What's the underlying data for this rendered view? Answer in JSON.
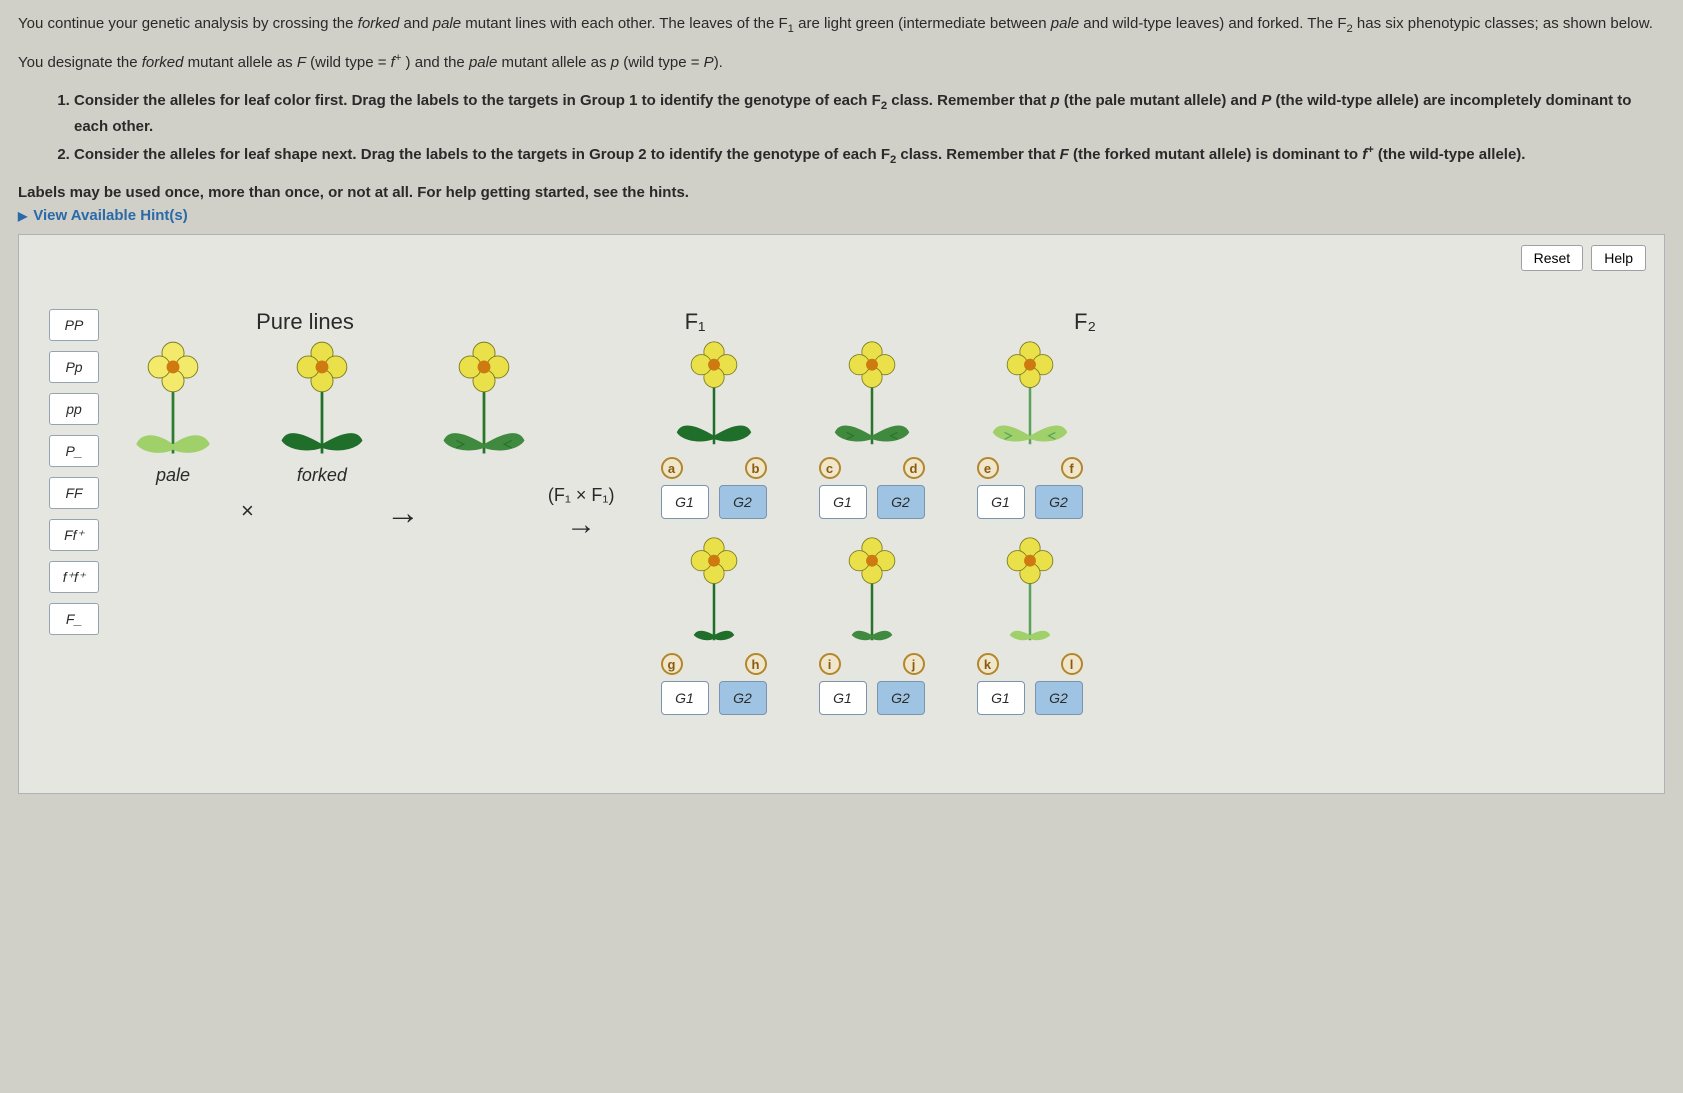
{
  "intro": {
    "p1_html": "You continue your genetic analysis by crossing the <em>forked</em> and <em>pale</em> mutant lines with each other. The leaves of the F<sub>1</sub> are light green (intermediate between <em>pale</em> and wild-type leaves) and forked. The F<sub>2</sub> has six phenotypic classes; as shown below.",
    "p2_html": "You designate the <em>forked</em> mutant allele as <em>F</em> (wild type = <em>f</em><sup>+</sup> ) and the <em>pale</em> mutant allele as <em>p</em> (wild type = <em>P</em>)."
  },
  "instructions": {
    "item1_html": "Consider the alleles for leaf color first. Drag the labels to the targets in Group 1 to identify the genotype of each F<sub>2</sub> class. Remember that <em>p</em> (the pale mutant allele) and <em>P</em> (the wild-type allele) are incompletely dominant to each other.",
    "item2_html": "Consider the alleles for leaf shape next. Drag the labels to the targets in Group 2 to identify the genotype of each F<sub>2</sub> class. Remember that <em>F</em> (the forked mutant allele) is dominant to <em>f</em><sup>+</sup> (the wild-type allele)."
  },
  "hints_line": "Labels may be used once, more than once, or not at all. For help getting started, see the hints.",
  "hint_toggle": "View Available Hint(s)",
  "buttons": {
    "reset": "Reset",
    "help": "Help"
  },
  "palette_labels": [
    "PP",
    "Pp",
    "pp",
    "P_",
    "FF",
    "Ff⁺",
    "f⁺f⁺",
    "F_"
  ],
  "headers": {
    "pure": "Pure lines",
    "f1": "F₁",
    "f2": "F₂"
  },
  "captions": {
    "pale": "pale",
    "forked": "forked"
  },
  "cross": {
    "times": "×",
    "arrow": "→",
    "f1xf1": "(F₁ × F₁)"
  },
  "plants": {
    "pale": {
      "petal": "#f3e96b",
      "center": "#cf7a10",
      "leaf": "#9fd06a",
      "stem": "#2e7d2e",
      "fork": false,
      "tiny": false
    },
    "forked": {
      "petal": "#e9e04a",
      "center": "#cf7a10",
      "leaf": "#1f6f2a",
      "stem": "#1f6f2a",
      "fork": true,
      "tiny": false
    },
    "f1": {
      "petal": "#e9e04a",
      "center": "#cf7a10",
      "leaf": "#3f8a3f",
      "stem": "#2a752a",
      "fork": true,
      "tiny": false
    },
    "f2": [
      {
        "petal": "#e9e04a",
        "center": "#cf7a10",
        "leaf": "#1f6f2a",
        "stem": "#1f6f2a",
        "fork": true,
        "tiny": false
      },
      {
        "petal": "#e9e04a",
        "center": "#cf7a10",
        "leaf": "#3f8a3f",
        "stem": "#2a752a",
        "fork": true,
        "tiny": false
      },
      {
        "petal": "#e9e04a",
        "center": "#cf7a10",
        "leaf": "#9fd06a",
        "stem": "#5ba35b",
        "fork": true,
        "tiny": false
      },
      {
        "petal": "#e9e04a",
        "center": "#cf7a10",
        "leaf": "#1f6f2a",
        "stem": "#1f6f2a",
        "fork": false,
        "tiny": true
      },
      {
        "petal": "#e9e04a",
        "center": "#cf7a10",
        "leaf": "#3f8a3f",
        "stem": "#2a752a",
        "fork": false,
        "tiny": true
      },
      {
        "petal": "#e9e04a",
        "center": "#cf7a10",
        "leaf": "#9fd06a",
        "stem": "#5ba35b",
        "fork": false,
        "tiny": true
      }
    ]
  },
  "markers": [
    "a",
    "b",
    "c",
    "d",
    "e",
    "f",
    "g",
    "h",
    "i",
    "j",
    "k",
    "l"
  ],
  "target_labels": {
    "g1": "G1",
    "g2": "G2"
  },
  "colors": {
    "page_bg": "#d0cfc8",
    "workspace_bg": "#e6e6e1",
    "workspace_border": "#aeb2b7",
    "chip_bg": "#ffffff",
    "chip_border": "#96a3b0",
    "target_g1_bg": "#ffffff",
    "target_g2_bg": "#9fc4e3",
    "target_border": "#7a94b0",
    "marker_border": "#b2872c",
    "marker_bg": "#efe6cc",
    "marker_text": "#8a5a10",
    "link": "#2a6aa8"
  }
}
